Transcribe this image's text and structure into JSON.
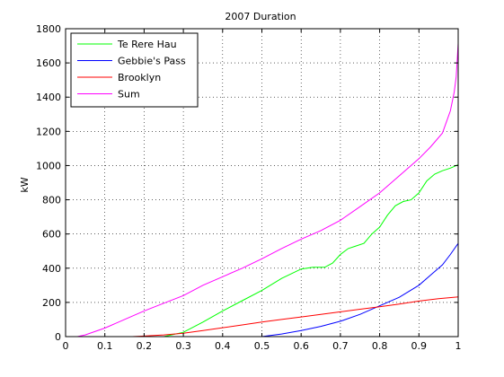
{
  "chart_data": {
    "type": "line",
    "title": "2007 Duration",
    "xlabel": "",
    "ylabel": "kW",
    "xlim": [
      0,
      1
    ],
    "ylim": [
      0,
      1800
    ],
    "x_ticks": [
      0,
      0.1,
      0.2,
      0.3,
      0.4,
      0.5,
      0.6,
      0.7,
      0.8,
      0.9,
      1
    ],
    "x_tick_labels": [
      "0",
      "0.1",
      "0.2",
      "0.3",
      "0.4",
      "0.5",
      "0.6",
      "0.7",
      "0.8",
      "0.9",
      "1"
    ],
    "y_ticks": [
      0,
      200,
      400,
      600,
      800,
      1000,
      1200,
      1400,
      1600,
      1800
    ],
    "y_tick_labels": [
      "0",
      "200",
      "400",
      "600",
      "800",
      "1000",
      "1200",
      "1400",
      "1600",
      "1800"
    ],
    "grid": true,
    "legend_position": "top-left",
    "series": [
      {
        "name": "Te Rere Hau",
        "color": "#00ff00",
        "x": [
          0.25,
          0.3,
          0.35,
          0.4,
          0.45,
          0.5,
          0.55,
          0.6,
          0.63,
          0.66,
          0.68,
          0.7,
          0.72,
          0.74,
          0.76,
          0.78,
          0.8,
          0.82,
          0.84,
          0.86,
          0.88,
          0.9,
          0.92,
          0.94,
          0.96,
          0.98,
          1.0
        ],
        "y": [
          0,
          25,
          85,
          150,
          210,
          270,
          340,
          395,
          405,
          405,
          430,
          480,
          515,
          530,
          545,
          600,
          640,
          710,
          765,
          790,
          800,
          840,
          910,
          950,
          970,
          985,
          1005
        ]
      },
      {
        "name": "Gebbie's Pass",
        "color": "#0000ff",
        "x": [
          0.5,
          0.55,
          0.6,
          0.65,
          0.7,
          0.75,
          0.8,
          0.85,
          0.9,
          0.93,
          0.96,
          0.98,
          1.0
        ],
        "y": [
          0,
          15,
          35,
          60,
          90,
          130,
          180,
          230,
          300,
          360,
          420,
          480,
          545
        ]
      },
      {
        "name": "Brooklyn",
        "color": "#ff0000",
        "x": [
          0.17,
          0.2,
          0.25,
          0.3,
          0.35,
          0.4,
          0.45,
          0.5,
          0.55,
          0.6,
          0.65,
          0.7,
          0.75,
          0.8,
          0.85,
          0.9,
          0.95,
          1.0
        ],
        "y": [
          0,
          3,
          10,
          20,
          35,
          52,
          68,
          85,
          100,
          115,
          130,
          145,
          160,
          175,
          190,
          208,
          222,
          232
        ]
      },
      {
        "name": "Sum",
        "color": "#ff00ff",
        "x": [
          0.03,
          0.05,
          0.1,
          0.15,
          0.2,
          0.25,
          0.3,
          0.35,
          0.4,
          0.45,
          0.5,
          0.55,
          0.6,
          0.65,
          0.7,
          0.75,
          0.8,
          0.85,
          0.9,
          0.93,
          0.96,
          0.98,
          0.99,
          0.995,
          1.0
        ],
        "y": [
          0,
          10,
          50,
          100,
          150,
          195,
          240,
          300,
          350,
          400,
          455,
          515,
          570,
          620,
          680,
          760,
          840,
          940,
          1040,
          1110,
          1190,
          1320,
          1430,
          1520,
          1715
        ]
      }
    ]
  }
}
